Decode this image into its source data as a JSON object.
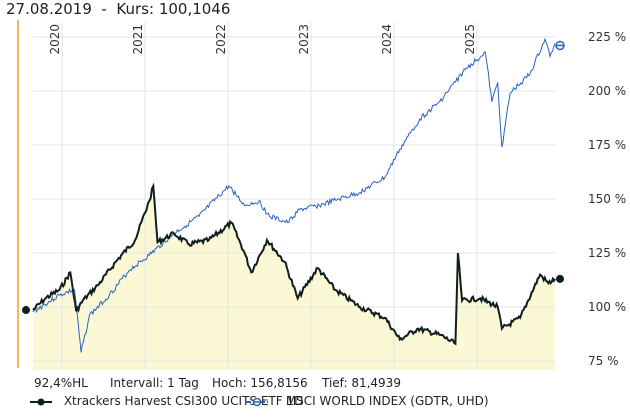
{
  "header": {
    "date": "27.08.2019",
    "kurs_label": "Kurs:",
    "kurs_value": "100,1046"
  },
  "info": {
    "hl": "92,4%HL",
    "interval": "Intervall: 1 Tag",
    "high": "Hoch: 156,8156",
    "low": "Tief: 81,4939"
  },
  "legend": [
    {
      "name": "Xtrackers Harvest CSI300 UCITS ETF 1D",
      "color": "#0f1f1f"
    },
    {
      "name": "MSCI WORLD INDEX (GDTR, UHD)",
      "color": "#2a62c2"
    }
  ],
  "chart_data": {
    "type": "line",
    "x_ticks": [
      "2020",
      "2021",
      "2022",
      "2023",
      "2024",
      "2025"
    ],
    "y_ticks": [
      "75 %",
      "100 %",
      "125 %",
      "150 %",
      "175 %",
      "200 %",
      "225 %"
    ],
    "y_tick_values": [
      75,
      100,
      125,
      150,
      175,
      200,
      225
    ],
    "xlim": [
      2019.65,
      2025.94
    ],
    "ylim": [
      72,
      232
    ],
    "series": [
      {
        "name": "Xtrackers Harvest CSI300 UCITS ETF 1D",
        "color": "#0f1f1f",
        "fill": "#fbf8d6",
        "points": [
          [
            2019.65,
            98.6
          ],
          [
            2019.8,
            104
          ],
          [
            2019.97,
            108
          ],
          [
            2020.1,
            116
          ],
          [
            2020.17,
            98
          ],
          [
            2020.25,
            103
          ],
          [
            2020.43,
            110
          ],
          [
            2020.67,
            122
          ],
          [
            2020.88,
            131
          ],
          [
            2021.05,
            149
          ],
          [
            2021.1,
            156
          ],
          [
            2021.15,
            130
          ],
          [
            2021.35,
            134
          ],
          [
            2021.53,
            129
          ],
          [
            2021.77,
            131
          ],
          [
            2022.04,
            139
          ],
          [
            2022.2,
            125
          ],
          [
            2022.28,
            116
          ],
          [
            2022.47,
            131
          ],
          [
            2022.68,
            121
          ],
          [
            2022.84,
            104
          ],
          [
            2023.08,
            118
          ],
          [
            2023.29,
            108
          ],
          [
            2023.59,
            100
          ],
          [
            2023.89,
            95
          ],
          [
            2024.07,
            85
          ],
          [
            2024.29,
            90
          ],
          [
            2024.56,
            87
          ],
          [
            2024.74,
            83
          ],
          [
            2024.77,
            125
          ],
          [
            2024.82,
            103
          ],
          [
            2025.04,
            104
          ],
          [
            2025.25,
            100
          ],
          [
            2025.3,
            90
          ],
          [
            2025.52,
            95
          ],
          [
            2025.76,
            115
          ],
          [
            2025.86,
            111
          ],
          [
            2025.94,
            113
          ]
        ]
      },
      {
        "name": "MSCI WORLD INDEX (GDTR, UHD)",
        "color": "#2a62c2",
        "points": [
          [
            2019.65,
            97.7
          ],
          [
            2019.97,
            105.5
          ],
          [
            2020.15,
            108
          ],
          [
            2020.23,
            79
          ],
          [
            2020.33,
            96
          ],
          [
            2020.57,
            105.5
          ],
          [
            2020.81,
            117
          ],
          [
            2021.05,
            124
          ],
          [
            2021.35,
            134
          ],
          [
            2021.65,
            142
          ],
          [
            2022.01,
            156
          ],
          [
            2022.2,
            147
          ],
          [
            2022.37,
            149
          ],
          [
            2022.5,
            142
          ],
          [
            2022.72,
            139
          ],
          [
            2022.86,
            145
          ],
          [
            2023.1,
            147
          ],
          [
            2023.34,
            150
          ],
          [
            2023.59,
            153
          ],
          [
            2023.89,
            160
          ],
          [
            2024.07,
            173
          ],
          [
            2024.31,
            187
          ],
          [
            2024.55,
            195
          ],
          [
            2024.86,
            210
          ],
          [
            2025.1,
            218
          ],
          [
            2025.18,
            195
          ],
          [
            2025.25,
            204
          ],
          [
            2025.3,
            174
          ],
          [
            2025.4,
            199
          ],
          [
            2025.64,
            208
          ],
          [
            2025.82,
            224
          ],
          [
            2025.88,
            216
          ],
          [
            2025.94,
            222
          ]
        ]
      }
    ]
  }
}
